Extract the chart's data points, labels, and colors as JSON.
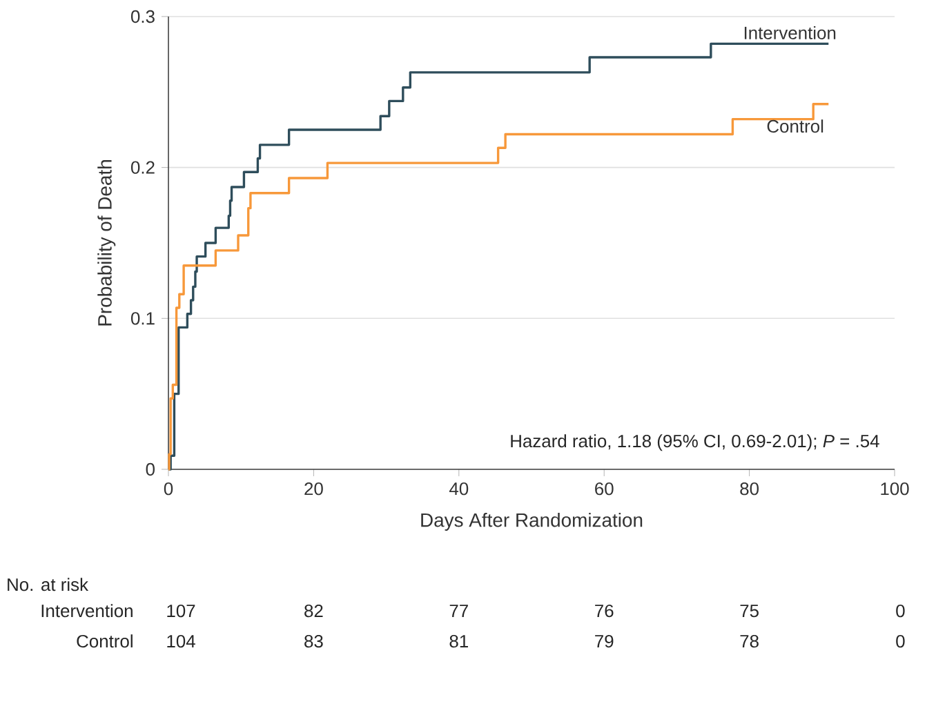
{
  "chart_data": {
    "type": "step",
    "xlabel": "Days After Randomization",
    "ylabel": "Probability of Death",
    "xlim": [
      0,
      100
    ],
    "ylim": [
      0,
      0.3
    ],
    "xticks": [
      0,
      20,
      40,
      60,
      80,
      100
    ],
    "yticks": [
      0,
      0.1,
      0.2,
      0.3
    ],
    "grid": "y",
    "series": [
      {
        "name": "Intervention",
        "color": "#2e4d5b",
        "x": [
          0,
          0.3,
          0.8,
          1.4,
          2.6,
          3.1,
          3.4,
          3.7,
          3.9,
          5.1,
          6.5,
          8.3,
          8.5,
          8.7,
          10.4,
          12.3,
          12.6,
          16.6,
          29.2,
          30.4,
          32.3,
          33.3,
          58.0,
          74.7,
          90.9
        ],
        "values": [
          0,
          0.009,
          0.05,
          0.094,
          0.103,
          0.112,
          0.121,
          0.131,
          0.141,
          0.15,
          0.16,
          0.168,
          0.178,
          0.187,
          0.197,
          0.206,
          0.215,
          0.225,
          0.234,
          0.244,
          0.253,
          0.263,
          0.273,
          0.282,
          0.282
        ]
      },
      {
        "name": "Control",
        "color": "#f7983a",
        "x": [
          0,
          0.1,
          0.3,
          0.6,
          1.1,
          1.5,
          2.1,
          6.5,
          9.6,
          11.0,
          11.3,
          16.6,
          21.9,
          45.4,
          46.4,
          77.7,
          88.8,
          90.9
        ],
        "values": [
          0,
          0.01,
          0.047,
          0.056,
          0.107,
          0.116,
          0.135,
          0.145,
          0.155,
          0.173,
          0.183,
          0.193,
          0.203,
          0.213,
          0.222,
          0.232,
          0.242,
          0.242
        ]
      }
    ],
    "annotations": [
      "Hazard ratio, 1.18 (95% CI, 0.69-2.01); *P* = .54",
      "No. at risk",
      "Intervention",
      "107",
      "82",
      "77",
      "76",
      "75",
      "0",
      "Control",
      "104",
      "83",
      "81",
      "79",
      "78",
      "0"
    ]
  }
}
